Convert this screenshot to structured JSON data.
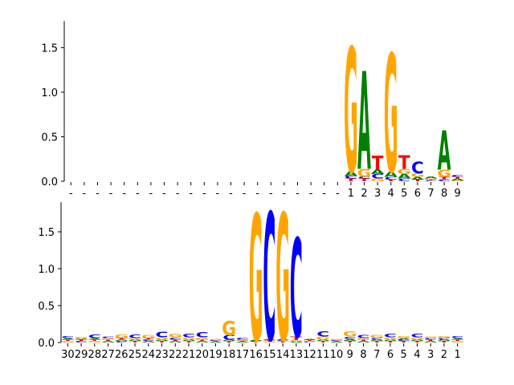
{
  "colors": {
    "A": "#008000",
    "C": "#0000ff",
    "G": "#ffa500",
    "T": "#ff0000",
    "axis": "#000000"
  },
  "chart_data": [
    {
      "type": "sequence-logo",
      "title": "",
      "ylim": [
        0,
        1.8
      ],
      "yticks": [
        "0.0",
        "0.5",
        "1.0",
        "1.5"
      ],
      "positions": [
        "-",
        "-",
        "-",
        "-",
        "-",
        "-",
        "-",
        "-",
        "-",
        "-",
        "-",
        "-",
        "-",
        "-",
        "-",
        "-",
        "-",
        "-",
        "-",
        "-",
        "-",
        "1",
        "2",
        "3",
        "4",
        "5",
        "6",
        "7",
        "8",
        "9"
      ],
      "stacks": [
        [],
        [],
        [],
        [],
        [],
        [],
        [],
        [],
        [],
        [],
        [],
        [],
        [],
        [],
        [],
        [],
        [],
        [],
        [],
        [],
        [],
        [
          {
            "b": "T",
            "h": 0.03
          },
          {
            "b": "C",
            "h": 0.03
          },
          {
            "b": "A",
            "h": 0.05
          },
          {
            "b": "G",
            "h": 1.4
          }
        ],
        [
          {
            "b": "T",
            "h": 0.03
          },
          {
            "b": "C",
            "h": 0.02
          },
          {
            "b": "G",
            "h": 0.09
          },
          {
            "b": "A",
            "h": 1.1
          }
        ],
        [
          {
            "b": "G",
            "h": 0.03
          },
          {
            "b": "C",
            "h": 0.05
          },
          {
            "b": "A",
            "h": 0.05
          },
          {
            "b": "T",
            "h": 0.16
          }
        ],
        [
          {
            "b": "T",
            "h": 0.02
          },
          {
            "b": "C",
            "h": 0.03
          },
          {
            "b": "A",
            "h": 0.06
          },
          {
            "b": "G",
            "h": 1.33
          }
        ],
        [
          {
            "b": "C",
            "h": 0.03
          },
          {
            "b": "A",
            "h": 0.05
          },
          {
            "b": "G",
            "h": 0.06
          },
          {
            "b": "T",
            "h": 0.15
          }
        ],
        [
          {
            "b": "T",
            "h": 0.02
          },
          {
            "b": "A",
            "h": 0.03
          },
          {
            "b": "G",
            "h": 0.04
          },
          {
            "b": "C",
            "h": 0.13
          }
        ],
        [
          {
            "b": "C",
            "h": 0.01
          },
          {
            "b": "T",
            "h": 0.01
          },
          {
            "b": "G",
            "h": 0.01
          },
          {
            "b": "A",
            "h": 0.02
          }
        ],
        [
          {
            "b": "C",
            "h": 0.02
          },
          {
            "b": "T",
            "h": 0.03
          },
          {
            "b": "G",
            "h": 0.08
          },
          {
            "b": "A",
            "h": 0.44
          }
        ],
        [
          {
            "b": "G",
            "h": 0.01
          },
          {
            "b": "A",
            "h": 0.02
          },
          {
            "b": "T",
            "h": 0.02
          },
          {
            "b": "C",
            "h": 0.02
          }
        ]
      ]
    },
    {
      "type": "sequence-logo",
      "title": "",
      "ylim": [
        0,
        1.9
      ],
      "yticks": [
        "0.0",
        "0.5",
        "1.0",
        "1.5"
      ],
      "positions": [
        "30",
        "29",
        "28",
        "27",
        "26",
        "25",
        "24",
        "23",
        "22",
        "21",
        "20",
        "19",
        "18",
        "17",
        "16",
        "15",
        "14",
        "13",
        "12",
        "11",
        "10",
        "9",
        "8",
        "7",
        "6",
        "5",
        "4",
        "3",
        "2",
        "1"
      ],
      "stacks": [
        [
          {
            "b": "G",
            "h": 0.02
          },
          {
            "b": "T",
            "h": 0.02
          },
          {
            "b": "A",
            "h": 0.02
          },
          {
            "b": "C",
            "h": 0.03
          }
        ],
        [
          {
            "b": "C",
            "h": 0.02
          },
          {
            "b": "T",
            "h": 0.02
          },
          {
            "b": "A",
            "h": 0.01
          },
          {
            "b": "G",
            "h": 0.03
          }
        ],
        [
          {
            "b": "G",
            "h": 0.02
          },
          {
            "b": "T",
            "h": 0.02
          },
          {
            "b": "A",
            "h": 0.02
          },
          {
            "b": "C",
            "h": 0.05
          }
        ],
        [
          {
            "b": "A",
            "h": 0.02
          },
          {
            "b": "T",
            "h": 0.02
          },
          {
            "b": "G",
            "h": 0.02
          },
          {
            "b": "C",
            "h": 0.02
          }
        ],
        [
          {
            "b": "C",
            "h": 0.02
          },
          {
            "b": "A",
            "h": 0.02
          },
          {
            "b": "T",
            "h": 0.02
          },
          {
            "b": "G",
            "h": 0.05
          }
        ],
        [
          {
            "b": "T",
            "h": 0.02
          },
          {
            "b": "A",
            "h": 0.02
          },
          {
            "b": "G",
            "h": 0.02
          },
          {
            "b": "C",
            "h": 0.05
          }
        ],
        [
          {
            "b": "A",
            "h": 0.02
          },
          {
            "b": "C",
            "h": 0.02
          },
          {
            "b": "T",
            "h": 0.02
          },
          {
            "b": "G",
            "h": 0.04
          }
        ],
        [
          {
            "b": "T",
            "h": 0.02
          },
          {
            "b": "A",
            "h": 0.02
          },
          {
            "b": "G",
            "h": 0.03
          },
          {
            "b": "C",
            "h": 0.08
          }
        ],
        [
          {
            "b": "A",
            "h": 0.02
          },
          {
            "b": "T",
            "h": 0.02
          },
          {
            "b": "C",
            "h": 0.03
          },
          {
            "b": "G",
            "h": 0.05
          }
        ],
        [
          {
            "b": "T",
            "h": 0.02
          },
          {
            "b": "A",
            "h": 0.02
          },
          {
            "b": "G",
            "h": 0.03
          },
          {
            "b": "C",
            "h": 0.05
          }
        ],
        [
          {
            "b": "A",
            "h": 0.02
          },
          {
            "b": "T",
            "h": 0.02
          },
          {
            "b": "G",
            "h": 0.03
          },
          {
            "b": "C",
            "h": 0.07
          }
        ],
        [
          {
            "b": "A",
            "h": 0.01
          },
          {
            "b": "T",
            "h": 0.01
          },
          {
            "b": "C",
            "h": 0.01
          },
          {
            "b": "G",
            "h": 0.01
          }
        ],
        [
          {
            "b": "T",
            "h": 0.02
          },
          {
            "b": "A",
            "h": 0.02
          },
          {
            "b": "C",
            "h": 0.06
          },
          {
            "b": "G",
            "h": 0.2
          }
        ],
        [
          {
            "b": "A",
            "h": 0.01
          },
          {
            "b": "T",
            "h": 0.01
          },
          {
            "b": "G",
            "h": 0.02
          },
          {
            "b": "C",
            "h": 0.03
          }
        ],
        [
          {
            "b": "T",
            "h": 0.01
          },
          {
            "b": "C",
            "h": 0.01
          },
          {
            "b": "A",
            "h": 0.01
          },
          {
            "b": "G",
            "h": 1.72
          }
        ],
        [
          {
            "b": "G",
            "h": 0.01
          },
          {
            "b": "T",
            "h": 0.02
          },
          {
            "b": "A",
            "h": 0.01
          },
          {
            "b": "C",
            "h": 1.73
          }
        ],
        [
          {
            "b": "T",
            "h": 0.02
          },
          {
            "b": "C",
            "h": 0.01
          },
          {
            "b": "A",
            "h": 0.01
          },
          {
            "b": "G",
            "h": 1.72
          }
        ],
        [
          {
            "b": "A",
            "h": 0.01
          },
          {
            "b": "G",
            "h": 0.02
          },
          {
            "b": "T",
            "h": 0.05
          },
          {
            "b": "C",
            "h": 1.34
          }
        ],
        [
          {
            "b": "C",
            "h": 0.01
          },
          {
            "b": "G",
            "h": 0.01
          },
          {
            "b": "T",
            "h": 0.01
          },
          {
            "b": "A",
            "h": 0.01
          }
        ],
        [
          {
            "b": "T",
            "h": 0.02
          },
          {
            "b": "A",
            "h": 0.02
          },
          {
            "b": "G",
            "h": 0.04
          },
          {
            "b": "C",
            "h": 0.07
          }
        ],
        [
          {
            "b": "A",
            "h": 0.01
          },
          {
            "b": "T",
            "h": 0.01
          },
          {
            "b": "C",
            "h": 0.01
          },
          {
            "b": "G",
            "h": 0.01
          }
        ],
        [
          {
            "b": "T",
            "h": 0.02
          },
          {
            "b": "A",
            "h": 0.03
          },
          {
            "b": "C",
            "h": 0.03
          },
          {
            "b": "G",
            "h": 0.07
          }
        ],
        [
          {
            "b": "A",
            "h": 0.02
          },
          {
            "b": "T",
            "h": 0.02
          },
          {
            "b": "G",
            "h": 0.02
          },
          {
            "b": "C",
            "h": 0.04
          }
        ],
        [
          {
            "b": "T",
            "h": 0.02
          },
          {
            "b": "A",
            "h": 0.02
          },
          {
            "b": "C",
            "h": 0.02
          },
          {
            "b": "G",
            "h": 0.04
          }
        ],
        [
          {
            "b": "T",
            "h": 0.02
          },
          {
            "b": "A",
            "h": 0.02
          },
          {
            "b": "G",
            "h": 0.03
          },
          {
            "b": "C",
            "h": 0.05
          }
        ],
        [
          {
            "b": "T",
            "h": 0.02
          },
          {
            "b": "C",
            "h": 0.02
          },
          {
            "b": "A",
            "h": 0.02
          },
          {
            "b": "G",
            "h": 0.03
          }
        ],
        [
          {
            "b": "T",
            "h": 0.02
          },
          {
            "b": "A",
            "h": 0.02
          },
          {
            "b": "G",
            "h": 0.03
          },
          {
            "b": "C",
            "h": 0.05
          }
        ],
        [
          {
            "b": "A",
            "h": 0.02
          },
          {
            "b": "T",
            "h": 0.02
          },
          {
            "b": "C",
            "h": 0.02
          },
          {
            "b": "G",
            "h": 0.02
          }
        ],
        [
          {
            "b": "T",
            "h": 0.02
          },
          {
            "b": "A",
            "h": 0.02
          },
          {
            "b": "C",
            "h": 0.02
          },
          {
            "b": "G",
            "h": 0.03
          }
        ],
        [
          {
            "b": "G",
            "h": 0.02
          },
          {
            "b": "T",
            "h": 0.02
          },
          {
            "b": "A",
            "h": 0.02
          },
          {
            "b": "C",
            "h": 0.03
          }
        ]
      ]
    }
  ]
}
